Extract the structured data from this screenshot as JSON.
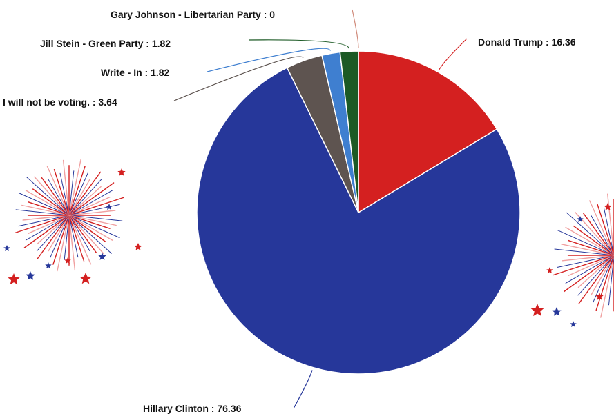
{
  "chart_data": {
    "type": "pie",
    "slices": [
      {
        "label": "Donald Trump : 16.36",
        "name": "Donald Trump",
        "value": 16.36,
        "color": "#d42020"
      },
      {
        "label": "Hillary Clinton : 76.36",
        "name": "Hillary Clinton",
        "value": 76.36,
        "color": "#26379a"
      },
      {
        "label": "I will not be voting. : 3.64",
        "name": "I will not be voting.",
        "value": 3.64,
        "color": "#5e5450"
      },
      {
        "label": "Write - In : 1.82",
        "name": "Write - In",
        "value": 1.82,
        "color": "#3f7fd0"
      },
      {
        "label": "Jill Stein - Green Party : 1.82",
        "name": "Jill Stein - Green Party",
        "value": 1.82,
        "color": "#1c5a25"
      },
      {
        "label": "Gary Johnson - Libertarian Party : 0",
        "name": "Gary Johnson - Libertarian Party",
        "value": 0,
        "color": "#d9a090"
      }
    ]
  },
  "decoration": {
    "fireworks_colors": [
      "#d42020",
      "#26379a",
      "#f0a0a0"
    ]
  }
}
